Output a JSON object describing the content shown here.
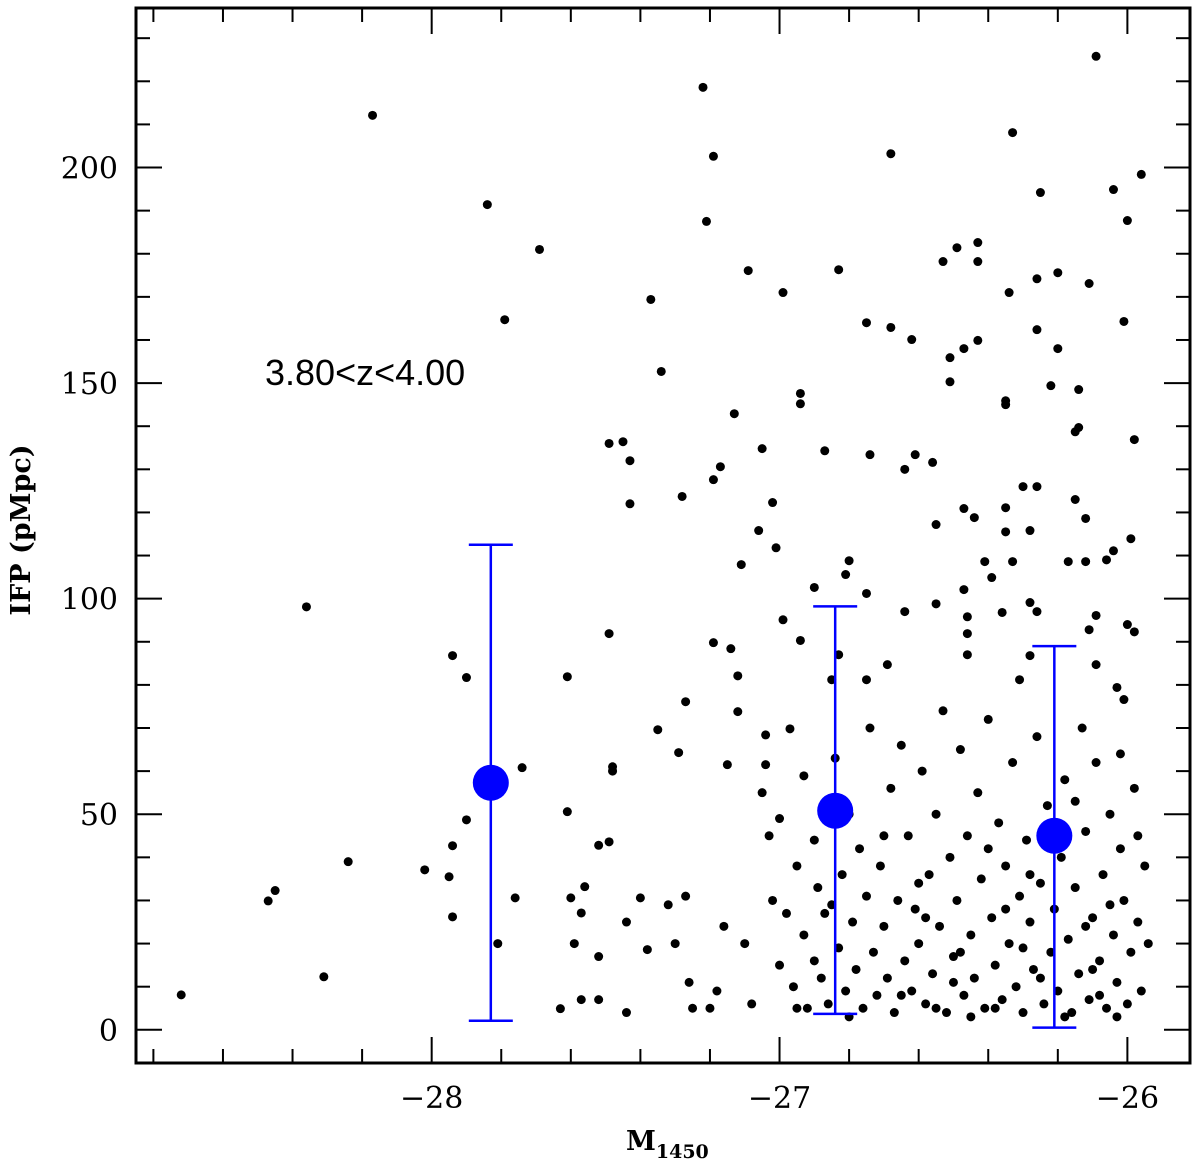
{
  "chart_data": {
    "type": "scatter",
    "xlabel": "M",
    "xlabel_subscript": "1450",
    "ylabel": "IFP (pMpc)",
    "annotation": "3.80<z<4.00",
    "xlim": [
      -28.85,
      -25.82
    ],
    "ylim": [
      -7.7,
      237
    ],
    "x_ticks": [
      -28,
      -27,
      -26
    ],
    "x_tick_labels": [
      "−28",
      "−27",
      "−26"
    ],
    "y_ticks": [
      0,
      50,
      100,
      150,
      200
    ],
    "y_tick_labels": [
      "0",
      "50",
      "100",
      "150",
      "200"
    ],
    "grid": false,
    "colors": {
      "points": "#000000",
      "binned": "#0000ff"
    },
    "series": [
      {
        "marker": "small-black-dot",
        "points": [
          [
            -28.72,
            8.1
          ],
          [
            -28.47,
            29.9
          ],
          [
            -28.45,
            32.3
          ],
          [
            -28.36,
            98.1
          ],
          [
            -28.31,
            12.3
          ],
          [
            -28.24,
            39.0
          ],
          [
            -28.17,
            212.1
          ],
          [
            -28.02,
            37.1
          ],
          [
            -27.95,
            35.5
          ],
          [
            -27.94,
            86.8
          ],
          [
            -27.94,
            42.7
          ],
          [
            -27.94,
            26.2
          ],
          [
            -27.9,
            81.7
          ],
          [
            -27.9,
            48.7
          ],
          [
            -27.84,
            191.4
          ],
          [
            -27.81,
            20.0
          ],
          [
            -27.79,
            164.7
          ],
          [
            -27.76,
            30.6
          ],
          [
            -27.74,
            60.8
          ],
          [
            -27.69,
            181.0
          ],
          [
            -27.63,
            4.9
          ],
          [
            -27.61,
            81.9
          ],
          [
            -27.61,
            50.6
          ],
          [
            -27.6,
            30.6
          ],
          [
            -27.59,
            20.0
          ],
          [
            -27.57,
            27.1
          ],
          [
            -27.56,
            33.2
          ],
          [
            -27.57,
            7.0
          ],
          [
            -27.52,
            7.0
          ],
          [
            -27.52,
            17.0
          ],
          [
            -27.52,
            42.8
          ],
          [
            -27.49,
            43.6
          ],
          [
            -27.49,
            91.9
          ],
          [
            -27.49,
            136.0
          ],
          [
            -27.48,
            61.0
          ],
          [
            -27.48,
            60.0
          ],
          [
            -27.45,
            136.4
          ],
          [
            -27.44,
            4.0
          ],
          [
            -27.44,
            25.0
          ],
          [
            -27.43,
            132.0
          ],
          [
            -27.43,
            122.0
          ],
          [
            -27.4,
            30.6
          ],
          [
            -27.38,
            18.6
          ],
          [
            -27.37,
            169.4
          ],
          [
            -27.35,
            69.6
          ],
          [
            -27.34,
            152.7
          ],
          [
            -27.32,
            29.0
          ],
          [
            -27.3,
            20.0
          ],
          [
            -27.29,
            64.3
          ],
          [
            -27.28,
            123.7
          ],
          [
            -27.27,
            76.1
          ],
          [
            -27.27,
            31.0
          ],
          [
            -27.26,
            11.0
          ],
          [
            -27.25,
            5.0
          ],
          [
            -27.22,
            218.6
          ],
          [
            -27.21,
            187.5
          ],
          [
            -27.2,
            5.0
          ],
          [
            -27.19,
            202.6
          ],
          [
            -27.19,
            127.6
          ],
          [
            -27.19,
            89.8
          ],
          [
            -27.18,
            9.0
          ],
          [
            -27.17,
            130.6
          ],
          [
            -27.16,
            24.0
          ],
          [
            -27.15,
            61.5
          ],
          [
            -27.14,
            88.4
          ],
          [
            -27.13,
            142.9
          ],
          [
            -27.12,
            82.1
          ],
          [
            -27.12,
            73.8
          ],
          [
            -27.11,
            107.9
          ],
          [
            -27.1,
            20.0
          ],
          [
            -27.09,
            176.1
          ],
          [
            -27.08,
            6.0
          ],
          [
            -27.06,
            115.8
          ],
          [
            -27.05,
            134.8
          ],
          [
            -27.04,
            68.4
          ],
          [
            -27.04,
            61.5
          ],
          [
            -27.02,
            122.3
          ],
          [
            -27.01,
            111.8
          ],
          [
            -27.0,
            49.0
          ],
          [
            -26.99,
            95.1
          ],
          [
            -26.99,
            171.0
          ],
          [
            -26.97,
            69.8
          ],
          [
            -26.94,
            147.6
          ],
          [
            -26.94,
            145.2
          ],
          [
            -26.94,
            90.3
          ],
          [
            -26.93,
            58.9
          ],
          [
            -26.9,
            102.6
          ],
          [
            -26.87,
            134.3
          ],
          [
            -26.85,
            81.2
          ],
          [
            -26.83,
            176.3
          ],
          [
            -26.83,
            87.0
          ],
          [
            -26.81,
            105.6
          ],
          [
            -26.8,
            108.8
          ],
          [
            -26.75,
            164.0
          ],
          [
            -26.75,
            101.2
          ],
          [
            -26.75,
            81.2
          ],
          [
            -26.74,
            133.4
          ],
          [
            -26.69,
            84.7
          ],
          [
            -26.68,
            203.2
          ],
          [
            -26.68,
            162.9
          ],
          [
            -26.64,
            130.0
          ],
          [
            -26.64,
            97.0
          ],
          [
            -26.62,
            160.1
          ],
          [
            -26.61,
            133.4
          ],
          [
            -26.56,
            131.6
          ],
          [
            -26.55,
            117.2
          ],
          [
            -26.55,
            98.8
          ],
          [
            -26.53,
            178.2
          ],
          [
            -26.51,
            155.9
          ],
          [
            -26.51,
            150.3
          ],
          [
            -26.49,
            181.4
          ],
          [
            -26.47,
            158.0
          ],
          [
            -26.47,
            120.9
          ],
          [
            -26.47,
            102.1
          ],
          [
            -26.46,
            95.8
          ],
          [
            -26.46,
            91.9
          ],
          [
            -26.46,
            87.0
          ],
          [
            -26.44,
            118.8
          ],
          [
            -26.43,
            182.6
          ],
          [
            -26.43,
            178.2
          ],
          [
            -26.43,
            159.9
          ],
          [
            -26.41,
            108.6
          ],
          [
            -26.39,
            104.9
          ],
          [
            -26.36,
            96.8
          ],
          [
            -26.35,
            145.9
          ],
          [
            -26.35,
            145.0
          ],
          [
            -26.35,
            121.1
          ],
          [
            -26.35,
            115.5
          ],
          [
            -26.34,
            171.0
          ],
          [
            -26.33,
            208.1
          ],
          [
            -26.33,
            108.6
          ],
          [
            -26.31,
            81.2
          ],
          [
            -26.3,
            126.0
          ],
          [
            -26.28,
            115.8
          ],
          [
            -26.28,
            99.1
          ],
          [
            -26.28,
            86.8
          ],
          [
            -26.26,
            174.2
          ],
          [
            -26.26,
            162.4
          ],
          [
            -26.26,
            126.0
          ],
          [
            -26.26,
            97.0
          ],
          [
            -26.25,
            194.2
          ],
          [
            -26.22,
            149.4
          ],
          [
            -26.2,
            175.6
          ],
          [
            -26.2,
            158.0
          ],
          [
            -26.17,
            108.6
          ],
          [
            -26.15,
            138.7
          ],
          [
            -26.15,
            123.0
          ],
          [
            -26.14,
            148.5
          ],
          [
            -26.14,
            139.7
          ],
          [
            -26.12,
            118.6
          ],
          [
            -26.12,
            108.6
          ],
          [
            -26.11,
            173.1
          ],
          [
            -26.11,
            92.8
          ],
          [
            -26.09,
            225.8
          ],
          [
            -26.09,
            96.1
          ],
          [
            -26.09,
            84.7
          ],
          [
            -26.06,
            109.0
          ],
          [
            -26.04,
            194.9
          ],
          [
            -26.04,
            111.1
          ],
          [
            -26.03,
            79.4
          ],
          [
            -26.01,
            164.3
          ],
          [
            -26.01,
            76.6
          ],
          [
            -26.0,
            187.7
          ],
          [
            -26.0,
            94.0
          ],
          [
            -25.99,
            113.9
          ],
          [
            -25.98,
            136.9
          ],
          [
            -25.98,
            92.3
          ],
          [
            -25.96,
            198.4
          ],
          [
            -27.05,
            55.0
          ],
          [
            -27.03,
            45.0
          ],
          [
            -27.02,
            30.0
          ],
          [
            -27.0,
            15.0
          ],
          [
            -26.98,
            27.0
          ],
          [
            -26.96,
            10.0
          ],
          [
            -26.95,
            38.0
          ],
          [
            -26.93,
            22.0
          ],
          [
            -26.92,
            5.0
          ],
          [
            -26.9,
            44.0
          ],
          [
            -26.89,
            33.0
          ],
          [
            -26.88,
            12.0
          ],
          [
            -26.87,
            27.0
          ],
          [
            -26.86,
            6.0
          ],
          [
            -26.84,
            63.0
          ],
          [
            -26.83,
            19.0
          ],
          [
            -26.82,
            36.0
          ],
          [
            -26.81,
            9.0
          ],
          [
            -26.8,
            50.0
          ],
          [
            -26.79,
            25.0
          ],
          [
            -26.78,
            14.0
          ],
          [
            -26.77,
            42.0
          ],
          [
            -26.76,
            5.0
          ],
          [
            -26.75,
            31.0
          ],
          [
            -26.74,
            70.0
          ],
          [
            -26.73,
            18.0
          ],
          [
            -26.72,
            8.0
          ],
          [
            -26.71,
            38.0
          ],
          [
            -26.7,
            24.0
          ],
          [
            -26.69,
            12.0
          ],
          [
            -26.68,
            56.0
          ],
          [
            -26.67,
            4.0
          ],
          [
            -26.66,
            30.0
          ],
          [
            -26.65,
            66.0
          ],
          [
            -26.64,
            16.0
          ],
          [
            -26.63,
            45.0
          ],
          [
            -26.62,
            9.0
          ],
          [
            -26.61,
            28.0
          ],
          [
            -26.6,
            20.0
          ],
          [
            -26.59,
            60.0
          ],
          [
            -26.58,
            6.0
          ],
          [
            -26.57,
            36.0
          ],
          [
            -26.56,
            13.0
          ],
          [
            -26.55,
            50.0
          ],
          [
            -26.54,
            24.0
          ],
          [
            -26.53,
            74.0
          ],
          [
            -26.52,
            4.0
          ],
          [
            -26.51,
            40.0
          ],
          [
            -26.5,
            17.0
          ],
          [
            -26.49,
            30.0
          ],
          [
            -26.48,
            65.0
          ],
          [
            -26.47,
            8.0
          ],
          [
            -26.46,
            45.0
          ],
          [
            -26.45,
            22.0
          ],
          [
            -26.44,
            12.0
          ],
          [
            -26.43,
            55.0
          ],
          [
            -26.42,
            35.0
          ],
          [
            -26.41,
            5.0
          ],
          [
            -26.4,
            72.0
          ],
          [
            -26.39,
            26.0
          ],
          [
            -26.38,
            15.0
          ],
          [
            -26.37,
            48.0
          ],
          [
            -26.36,
            7.0
          ],
          [
            -26.35,
            38.0
          ],
          [
            -26.34,
            20.0
          ],
          [
            -26.33,
            62.0
          ],
          [
            -26.32,
            10.0
          ],
          [
            -26.31,
            31.0
          ],
          [
            -26.3,
            4.0
          ],
          [
            -26.29,
            44.0
          ],
          [
            -26.28,
            25.0
          ],
          [
            -26.27,
            14.0
          ],
          [
            -26.26,
            68.0
          ],
          [
            -26.25,
            34.0
          ],
          [
            -26.24,
            6.0
          ],
          [
            -26.23,
            52.0
          ],
          [
            -26.22,
            18.0
          ],
          [
            -26.21,
            28.0
          ],
          [
            -26.2,
            9.0
          ],
          [
            -26.19,
            40.0
          ],
          [
            -26.18,
            58.0
          ],
          [
            -26.17,
            21.0
          ],
          [
            -26.16,
            4.0
          ],
          [
            -26.15,
            33.0
          ],
          [
            -26.14,
            13.0
          ],
          [
            -26.13,
            70.0
          ],
          [
            -26.12,
            46.0
          ],
          [
            -26.11,
            7.0
          ],
          [
            -26.1,
            26.0
          ],
          [
            -26.09,
            62.0
          ],
          [
            -26.08,
            16.0
          ],
          [
            -26.07,
            36.0
          ],
          [
            -26.06,
            5.0
          ],
          [
            -26.05,
            50.0
          ],
          [
            -26.04,
            22.0
          ],
          [
            -26.03,
            11.0
          ],
          [
            -26.02,
            42.0
          ],
          [
            -26.01,
            30.0
          ],
          [
            -26.0,
            6.0
          ],
          [
            -25.99,
            18.0
          ],
          [
            -25.98,
            56.0
          ],
          [
            -25.97,
            25.0
          ],
          [
            -25.96,
            9.0
          ],
          [
            -25.95,
            38.0
          ],
          [
            -25.94,
            20.0
          ],
          [
            -26.6,
            34.0
          ],
          [
            -26.5,
            11.0
          ],
          [
            -26.4,
            42.0
          ],
          [
            -26.3,
            19.0
          ],
          [
            -26.2,
            48.0
          ],
          [
            -26.1,
            14.0
          ],
          [
            -26.05,
            29.0
          ],
          [
            -26.45,
            3.0
          ],
          [
            -26.35,
            28.0
          ],
          [
            -26.25,
            12.0
          ],
          [
            -26.15,
            53.0
          ],
          [
            -26.08,
            8.0
          ],
          [
            -26.02,
            64.0
          ],
          [
            -26.55,
            5.0
          ],
          [
            -26.65,
            8.0
          ],
          [
            -26.7,
            45.0
          ],
          [
            -26.8,
            3.0
          ],
          [
            -26.9,
            16.0
          ],
          [
            -26.85,
            29.0
          ],
          [
            -26.95,
            5.0
          ],
          [
            -26.58,
            26.0
          ],
          [
            -26.48,
            18.0
          ],
          [
            -26.38,
            5.0
          ],
          [
            -26.28,
            36.0
          ],
          [
            -26.18,
            3.0
          ],
          [
            -26.12,
            24.0
          ],
          [
            -26.03,
            3.0
          ],
          [
            -25.97,
            45.0
          ]
        ]
      },
      {
        "marker": "large-blue-dot-with-errorbar",
        "points": [
          {
            "x": -27.83,
            "y": 57.3,
            "ylow": 2.1,
            "yhigh": 112.5
          },
          {
            "x": -26.84,
            "y": 50.8,
            "ylow": 3.7,
            "yhigh": 98.2
          },
          {
            "x": -26.21,
            "y": 45.0,
            "ylow": 0.5,
            "yhigh": 89.0
          }
        ]
      }
    ]
  }
}
